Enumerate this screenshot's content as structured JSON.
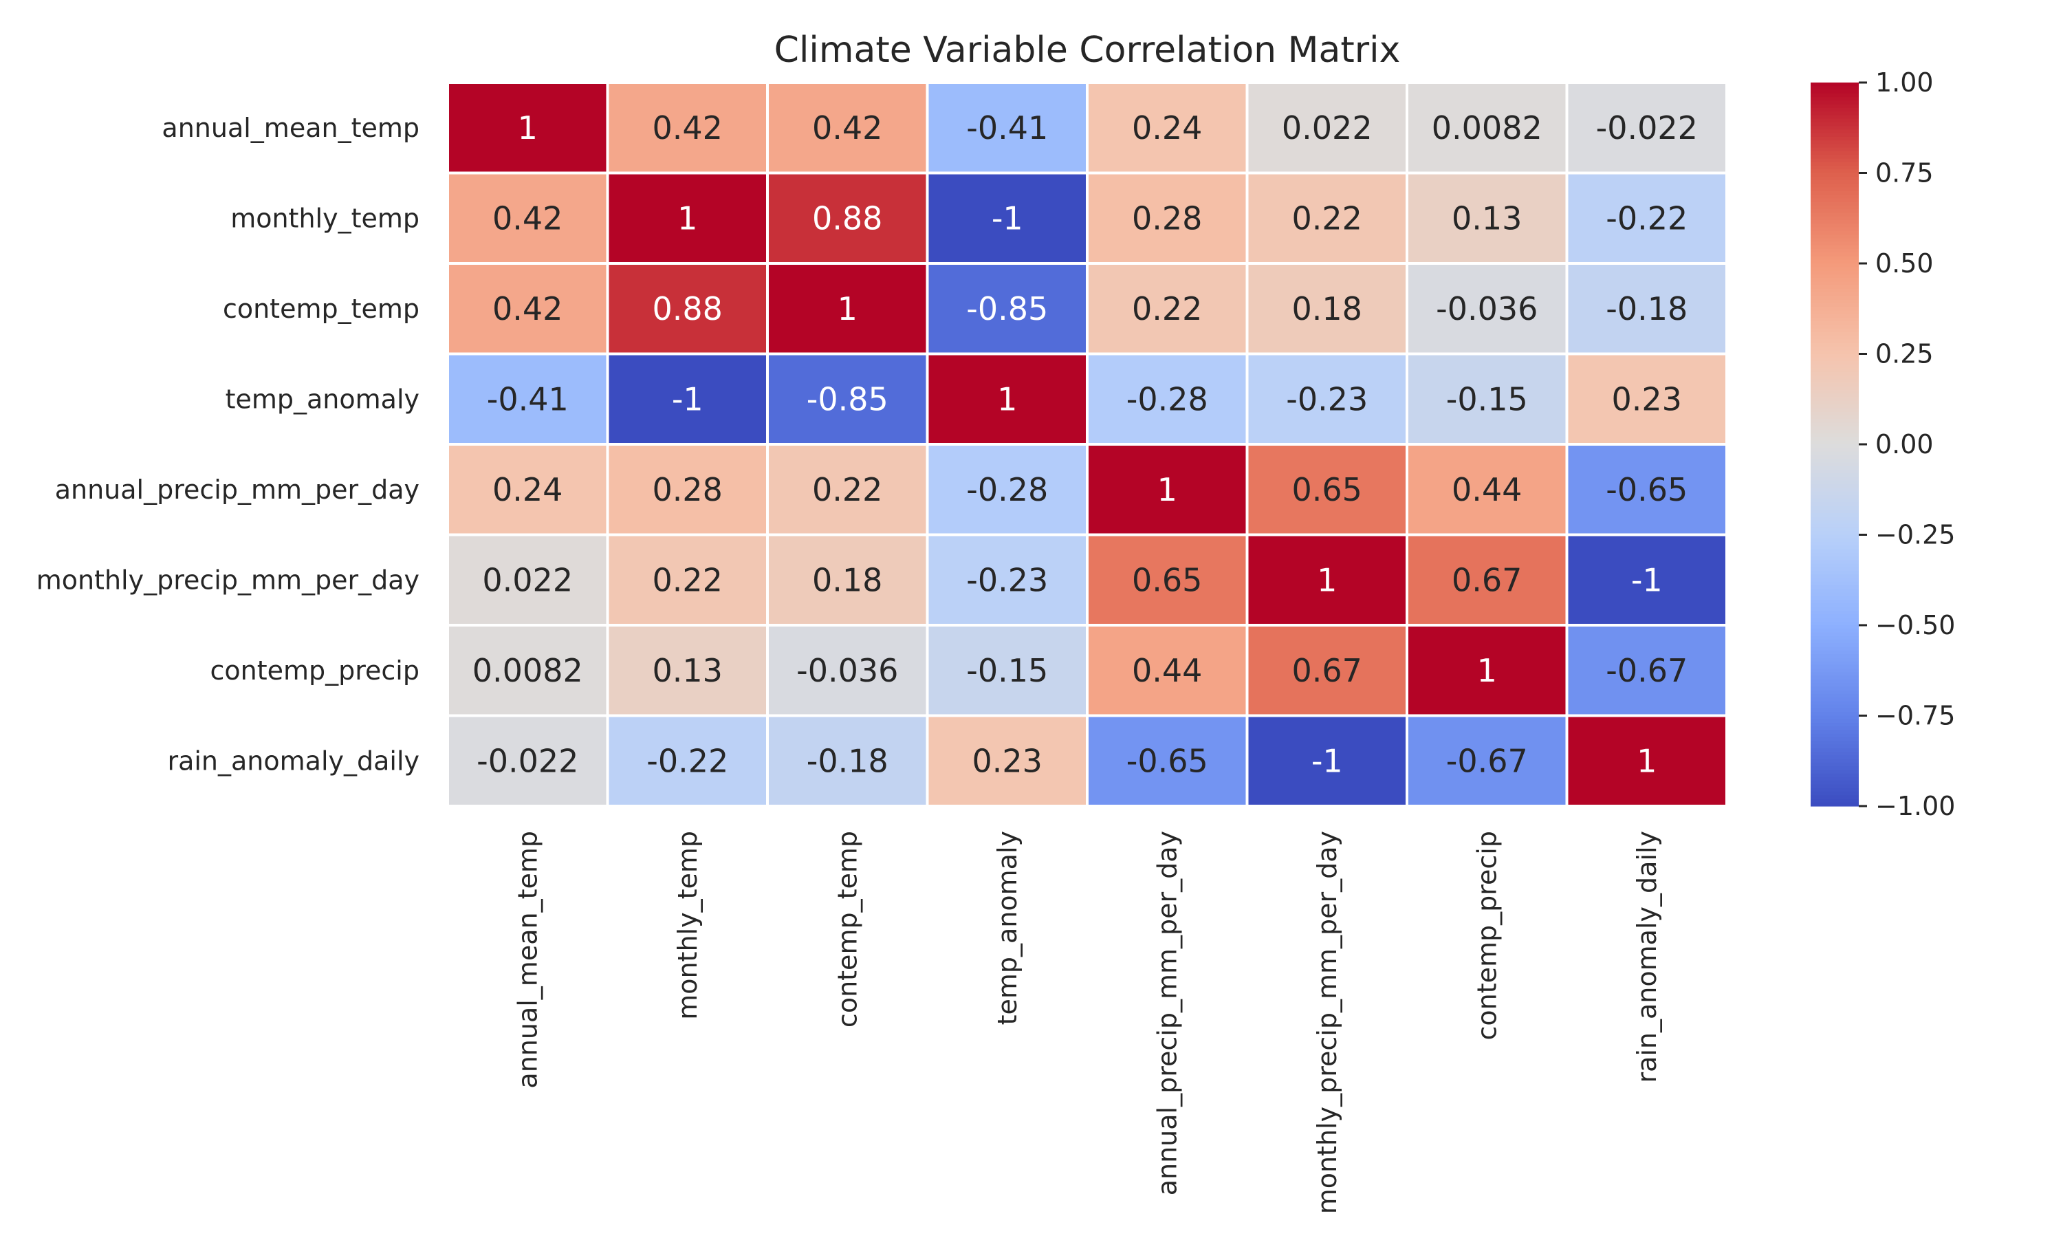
{
  "chart_data": {
    "type": "heatmap",
    "title": "Climate Variable Correlation Matrix",
    "row_labels": [
      "annual_mean_temp",
      "monthly_temp",
      "contemp_temp",
      "temp_anomaly",
      "annual_precip_mm_per_day",
      "monthly_precip_mm_per_day",
      "contemp_precip",
      "rain_anomaly_daily"
    ],
    "col_labels": [
      "annual_mean_temp",
      "monthly_temp",
      "contemp_temp",
      "temp_anomaly",
      "annual_precip_mm_per_day",
      "monthly_precip_mm_per_day",
      "contemp_precip",
      "rain_anomaly_daily"
    ],
    "values": [
      [
        1,
        0.42,
        0.42,
        -0.41,
        0.24,
        0.022,
        0.0082,
        -0.022
      ],
      [
        0.42,
        1,
        0.88,
        -1,
        0.28,
        0.22,
        0.13,
        -0.22
      ],
      [
        0.42,
        0.88,
        1,
        -0.85,
        0.22,
        0.18,
        -0.036,
        -0.18
      ],
      [
        -0.41,
        -1,
        -0.85,
        1,
        -0.28,
        -0.23,
        -0.15,
        0.23
      ],
      [
        0.24,
        0.28,
        0.22,
        -0.28,
        1,
        0.65,
        0.44,
        -0.65
      ],
      [
        0.022,
        0.22,
        0.18,
        -0.23,
        0.65,
        1,
        0.67,
        -1
      ],
      [
        0.0082,
        0.13,
        -0.036,
        -0.15,
        0.44,
        0.67,
        1,
        -0.67
      ],
      [
        -0.022,
        -0.22,
        -0.18,
        0.23,
        -0.65,
        -1,
        -0.67,
        1
      ]
    ],
    "cell_labels": [
      [
        "1",
        "0.42",
        "0.42",
        "-0.41",
        "0.24",
        "0.022",
        "0.0082",
        "-0.022"
      ],
      [
        "0.42",
        "1",
        "0.88",
        "-1",
        "0.28",
        "0.22",
        "0.13",
        "-0.22"
      ],
      [
        "0.42",
        "0.88",
        "1",
        "-0.85",
        "0.22",
        "0.18",
        "-0.036",
        "-0.18"
      ],
      [
        "-0.41",
        "-1",
        "-0.85",
        "1",
        "-0.28",
        "-0.23",
        "-0.15",
        "0.23"
      ],
      [
        "0.24",
        "0.28",
        "0.22",
        "-0.28",
        "1",
        "0.65",
        "0.44",
        "-0.65"
      ],
      [
        "0.022",
        "0.22",
        "0.18",
        "-0.23",
        "0.65",
        "1",
        "0.67",
        "-1"
      ],
      [
        "0.0082",
        "0.13",
        "-0.036",
        "-0.15",
        "0.44",
        "0.67",
        "1",
        "-0.67"
      ],
      [
        "-0.022",
        "-0.22",
        "-0.18",
        "0.23",
        "-0.65",
        "-1",
        "-0.67",
        "1"
      ]
    ],
    "colormap": "coolwarm",
    "vmin": -1,
    "vmax": 1,
    "colorbar": {
      "ticks": [
        1.0,
        0.75,
        0.5,
        0.25,
        0.0,
        -0.25,
        -0.5,
        -0.75,
        -1.0
      ],
      "tick_labels": [
        "1.00",
        "0.75",
        "0.50",
        "0.25",
        "0.00",
        "−0.25",
        "−0.50",
        "−0.75",
        "−1.00"
      ]
    },
    "grid": true,
    "gridline_color": "#ffffff"
  }
}
